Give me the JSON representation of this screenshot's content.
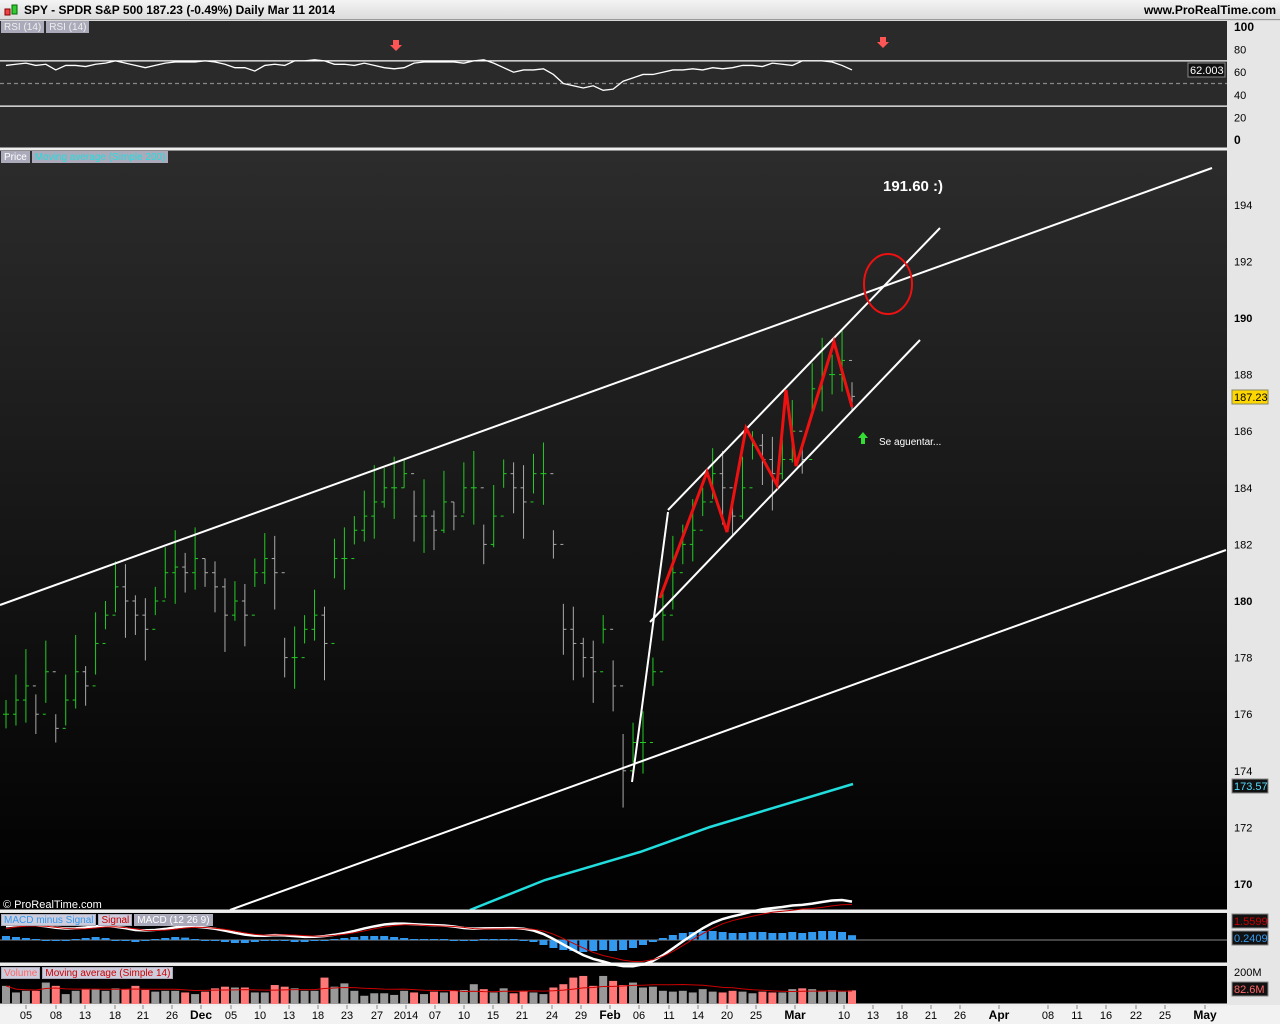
{
  "header": {
    "title": "SPY - SPDR S&P 500     187.23 (-0.49%)    Daily  Mar 11 2014",
    "site": "www.ProRealTime.com"
  },
  "panels": {
    "rsi": {
      "tags": [
        "RSI (14)",
        "RSI (14)"
      ],
      "axis": [
        "100",
        "80",
        "60",
        "40",
        "20",
        "0"
      ],
      "badge": "62.003"
    },
    "price": {
      "tags": [
        "Price",
        "Moving average (Simple 200)"
      ],
      "axis": [
        "194",
        "192",
        "190",
        "188",
        "186",
        "184",
        "182",
        "180",
        "178",
        "176",
        "174",
        "172",
        "170"
      ],
      "badge_last": "187.23",
      "badge_ma": "173.57",
      "copyright": "© ProRealTime.com",
      "annotation_target": "191.60   :)",
      "annotation_note": "Se aguentar..."
    },
    "macd": {
      "tags": [
        "MACD minus Signal",
        "Signal",
        "MACD (12 26 9)"
      ],
      "badge_signal": "1.5599",
      "badge_hist": "0.2409"
    },
    "volume": {
      "tags": [
        "Volume",
        "Moving average (Simple 14)"
      ],
      "axis": [
        "200M"
      ],
      "badge": "82.6M"
    }
  },
  "colors": {
    "up": "#22cc22",
    "down": "#aaaaaa",
    "ma200": "#22dddd",
    "drawing": "#ffffff",
    "zigzag": "#ee1111",
    "macd_hist": "#3399ee",
    "signal": "#cc0000",
    "vol_up": "#999999",
    "vol_down": "#ff7777"
  },
  "chart_data": {
    "type": "ohlc",
    "x_ticks": [
      "05",
      "08",
      "13",
      "18",
      "21",
      "26",
      "Dec",
      "05",
      "10",
      "13",
      "18",
      "23",
      "27",
      "2014",
      "07",
      "10",
      "15",
      "21",
      "24",
      "29",
      "Feb",
      "06",
      "11",
      "14",
      "20",
      "25",
      "Mar",
      "10",
      "13",
      "18",
      "21",
      "26",
      "Apr",
      "08",
      "11",
      "16",
      "22",
      "25",
      "May"
    ],
    "close": [
      176,
      176.5,
      177,
      176,
      177.5,
      175.5,
      176.5,
      177.5,
      177,
      178.5,
      179.5,
      180.5,
      180,
      179.5,
      179,
      180,
      181,
      181.2,
      181,
      181.5,
      181,
      180.5,
      179.5,
      180,
      179.5,
      181,
      181.5,
      181,
      178,
      178,
      179,
      179.5,
      178.5,
      181.5,
      181.5,
      182.5,
      183,
      183.5,
      184,
      184,
      184.5,
      183,
      183,
      182.5,
      183.5,
      183,
      184,
      184,
      182,
      183,
      184.5,
      184,
      183.5,
      184.5,
      184.5,
      182,
      179,
      178.5,
      178,
      177.5,
      179,
      177,
      174,
      175,
      175,
      177.5,
      179.5,
      181,
      182,
      182.5,
      183.5,
      184.5,
      184,
      183,
      184,
      185.5,
      185,
      184.5,
      185,
      186,
      185,
      187.5,
      188,
      188,
      188.5,
      187.23
    ],
    "rsi": [
      66,
      67,
      68,
      66,
      67,
      62,
      66,
      66,
      65,
      67,
      68,
      70,
      68,
      66,
      64,
      66,
      68,
      69,
      69,
      69,
      70,
      69,
      67,
      64,
      64,
      61,
      66,
      67,
      66,
      70,
      70,
      71,
      70,
      67,
      67,
      66,
      68,
      66,
      64,
      63,
      64,
      68,
      69,
      69,
      69,
      69,
      68,
      70,
      71,
      68,
      64,
      60,
      62,
      62,
      63,
      58,
      50,
      48,
      46,
      48,
      44,
      45,
      52,
      55,
      58,
      58,
      60,
      62,
      62,
      63,
      62,
      64,
      63,
      64,
      66,
      66,
      65,
      68,
      67,
      66,
      70,
      70,
      70,
      69,
      66,
      62.003
    ],
    "rsi_levels": [
      70,
      50,
      30
    ],
    "macd_hist": [
      0.2,
      0.15,
      0.1,
      0.05,
      0,
      -0.05,
      0,
      0.05,
      0.1,
      0.15,
      0.1,
      0,
      -0.05,
      -0.1,
      0,
      0.05,
      0.1,
      0.15,
      0.12,
      0.05,
      0,
      -0.05,
      -0.1,
      -0.15,
      -0.15,
      -0.1,
      -0.05,
      0,
      -0.05,
      -0.1,
      -0.1,
      -0.05,
      0,
      0.05,
      0.1,
      0.15,
      0.2,
      0.2,
      0.2,
      0.15,
      0.1,
      0.05,
      0.05,
      0.05,
      0.05,
      0,
      -0.05,
      0,
      0.05,
      0.05,
      0.05,
      0.05,
      0,
      -0.1,
      -0.25,
      -0.4,
      -0.5,
      -0.55,
      -0.6,
      -0.55,
      -0.5,
      -0.55,
      -0.5,
      -0.4,
      -0.25,
      -0.1,
      0.1,
      0.25,
      0.35,
      0.4,
      0.45,
      0.45,
      0.4,
      0.35,
      0.35,
      0.4,
      0.4,
      0.35,
      0.35,
      0.4,
      0.35,
      0.4,
      0.45,
      0.45,
      0.4,
      0.24
    ],
    "volume_m": [
      110,
      70,
      80,
      80,
      130,
      110,
      60,
      80,
      90,
      90,
      80,
      95,
      90,
      110,
      85,
      75,
      80,
      80,
      70,
      60,
      75,
      95,
      105,
      100,
      100,
      70,
      70,
      115,
      105,
      95,
      80,
      80,
      160,
      105,
      125,
      80,
      50,
      65,
      65,
      55,
      80,
      70,
      60,
      75,
      70,
      80,
      85,
      120,
      90,
      70,
      95,
      65,
      80,
      70,
      60,
      100,
      120,
      160,
      170,
      110,
      170,
      140,
      115,
      130,
      100,
      105,
      80,
      75,
      80,
      70,
      90,
      75,
      70,
      80,
      75,
      65,
      75,
      70,
      70,
      90,
      95,
      90,
      80,
      85,
      75,
      82.6
    ]
  }
}
